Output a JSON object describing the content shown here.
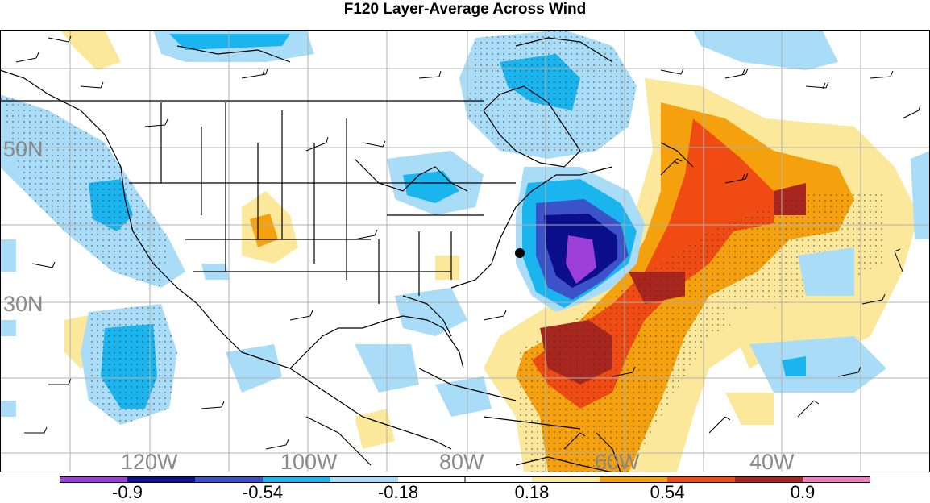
{
  "title": "F120 Layer-Average Across Wind",
  "colors": {
    "purple": "#9b3fd8",
    "navy": "#0b0f8c",
    "royal": "#3b52c8",
    "sky": "#1ab4ee",
    "pale_blue": "#a9dcf6",
    "pale_yellow": "#fbe89a",
    "orange": "#f5a10d",
    "red_orange": "#f04b13",
    "dark_red": "#a8261e",
    "pink": "#f07fbf"
  },
  "colorbar": {
    "labels": [
      "-0.9",
      "-0.54",
      "-0.18",
      "0.18",
      "0.54",
      "0.9"
    ]
  },
  "longitude_labels": [
    "120W",
    "100W",
    "80W",
    "60W",
    "40W"
  ],
  "latitude_labels": [
    "50N",
    "30N"
  ]
}
